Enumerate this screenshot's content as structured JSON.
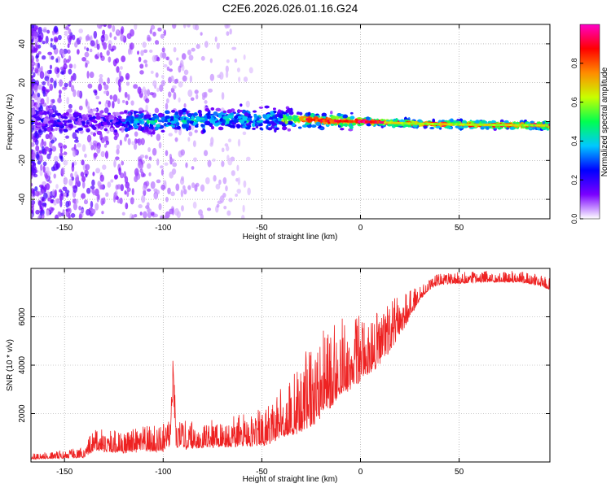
{
  "title": "C2E6.2026.026.01.16.G24",
  "chart_data": [
    {
      "type": "heatmap",
      "name": "spectrogram",
      "xlabel": "Height of straight line (km)",
      "ylabel": "Frequency (Hz)",
      "xlim": [
        -167,
        96
      ],
      "ylim": [
        -50,
        50
      ],
      "xticks": [
        -150,
        -100,
        -50,
        0,
        50
      ],
      "xtick_labels": [
        "-150",
        "-100",
        "-50",
        "0",
        "50"
      ],
      "yticks": [
        -40,
        -20,
        0,
        20,
        40
      ],
      "ytick_labels": [
        "-40",
        "-20",
        "0",
        "20",
        "40"
      ],
      "grid": true,
      "signal_center_hz": [
        {
          "x": -150,
          "y": 0.0
        },
        {
          "x": -100,
          "y": 0.0
        },
        {
          "x": -75,
          "y": 1.5
        },
        {
          "x": -50,
          "y": 1.0
        },
        {
          "x": -30,
          "y": 1.5
        },
        {
          "x": -20,
          "y": 0.5
        },
        {
          "x": 0,
          "y": 0.0
        },
        {
          "x": 25,
          "y": -1.0
        },
        {
          "x": 50,
          "y": -1.5
        },
        {
          "x": 95,
          "y": -2.0
        }
      ],
      "colorbar": {
        "label": "Normalized spectral amplitude",
        "range": [
          0.0,
          1.0
        ],
        "ticks": [
          0.0,
          0.2,
          0.4,
          0.6,
          0.8
        ],
        "tick_labels": [
          "0.0",
          "0.2",
          "0.4",
          "0.6",
          "0.8"
        ],
        "colors": [
          "#ffffff",
          "#7a00ff",
          "#0000ff",
          "#00c8ff",
          "#00ff50",
          "#c8ff00",
          "#ff8c00",
          "#ff0000",
          "#ff00c8"
        ]
      }
    },
    {
      "type": "line",
      "name": "snr",
      "xlabel": "Height of straight line (km)",
      "ylabel": "SNR (10 * v/v)",
      "xlim": [
        -167,
        96
      ],
      "ylim": [
        0,
        8000
      ],
      "xticks": [
        -150,
        -100,
        -50,
        0,
        50
      ],
      "xtick_labels": [
        "-150",
        "-100",
        "-50",
        "0",
        "50"
      ],
      "yticks": [
        2000,
        4000,
        6000
      ],
      "ytick_labels": [
        "2000",
        "4000",
        "6000"
      ],
      "grid": true,
      "series": [
        {
          "name": "SNR",
          "color": "#ee2222",
          "x": [
            -167,
            -150,
            -140,
            -135,
            -120,
            -110,
            -100,
            -95,
            -90,
            -80,
            -70,
            -60,
            -50,
            -40,
            -35,
            -30,
            -25,
            -20,
            -15,
            -10,
            -5,
            0,
            5,
            10,
            15,
            20,
            25,
            30,
            35,
            40,
            50,
            60,
            70,
            80,
            90,
            96
          ],
          "y": [
            150,
            200,
            250,
            600,
            500,
            600,
            600,
            900,
            700,
            750,
            800,
            850,
            900,
            1300,
            1500,
            1700,
            2000,
            2400,
            2800,
            3200,
            3500,
            3800,
            4100,
            4400,
            4900,
            5500,
            6100,
            6800,
            7200,
            7400,
            7450,
            7500,
            7500,
            7500,
            7350,
            7200
          ],
          "noise": [
            100,
            150,
            180,
            400,
            400,
            450,
            500,
            600,
            500,
            500,
            500,
            600,
            650,
            900,
            1100,
            1300,
            1500,
            1500,
            1400,
            1400,
            1300,
            1200,
            1100,
            1000,
            900,
            700,
            500,
            300,
            200,
            200,
            200,
            200,
            200,
            200,
            200,
            200
          ]
        }
      ]
    }
  ]
}
